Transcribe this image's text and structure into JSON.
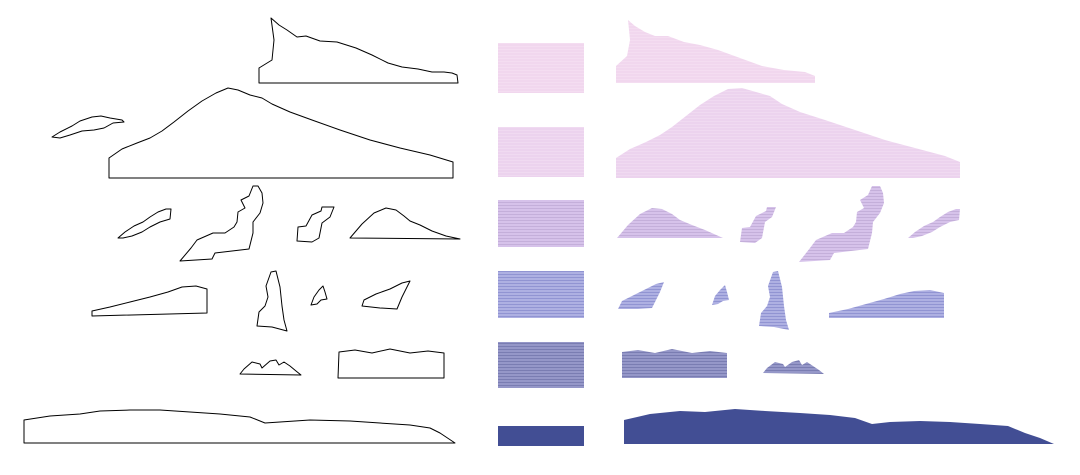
{
  "palette": {
    "levels": [
      {
        "color": "#f1d7ee",
        "line_color": "#f6e2f3",
        "line_opacity": 0.55
      },
      {
        "color": "#ecd3ee",
        "line_color": "#f3e0f4",
        "line_opacity": 0.55
      },
      {
        "color": "#d6c2ea",
        "line_color": "#c2add9",
        "line_opacity": 0.9
      },
      {
        "color": "#aeb0e2",
        "line_color": "#8f92d0",
        "line_opacity": 0.95
      },
      {
        "color": "#9597c8",
        "line_color": "#7a7db2",
        "line_opacity": 1
      },
      {
        "color": "#424e94",
        "line_color": "#424e94",
        "line_opacity": 0
      }
    ]
  },
  "panels": {
    "left": "outlines",
    "middle": "swatches",
    "right": "filled-shapes"
  }
}
